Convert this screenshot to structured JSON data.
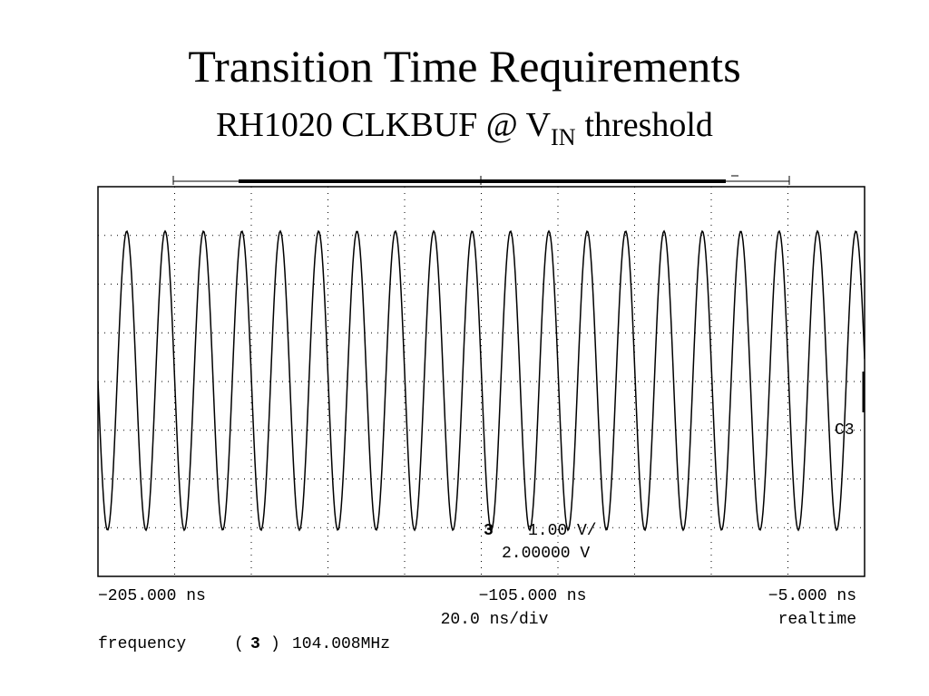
{
  "title": "Transition Time Requirements",
  "subtitle": {
    "text": "RH1020 CLKBUF @ V",
    "subscript": "IN",
    "suffix": "threshold"
  },
  "scope": {
    "time_left": "−205.000 ns",
    "time_center": "−105.000 ns",
    "time_right": "−5.000 ns",
    "timebase": "20.0 ns/div",
    "mode": "realtime",
    "channel_marker": "3",
    "scale": "1.00 V/",
    "offset": "2.00000 V",
    "channel_label": "C3",
    "measurement": {
      "name": "frequency",
      "open": "(",
      "channel": "3",
      "close": ")",
      "value": "104.008MHz"
    }
  }
}
